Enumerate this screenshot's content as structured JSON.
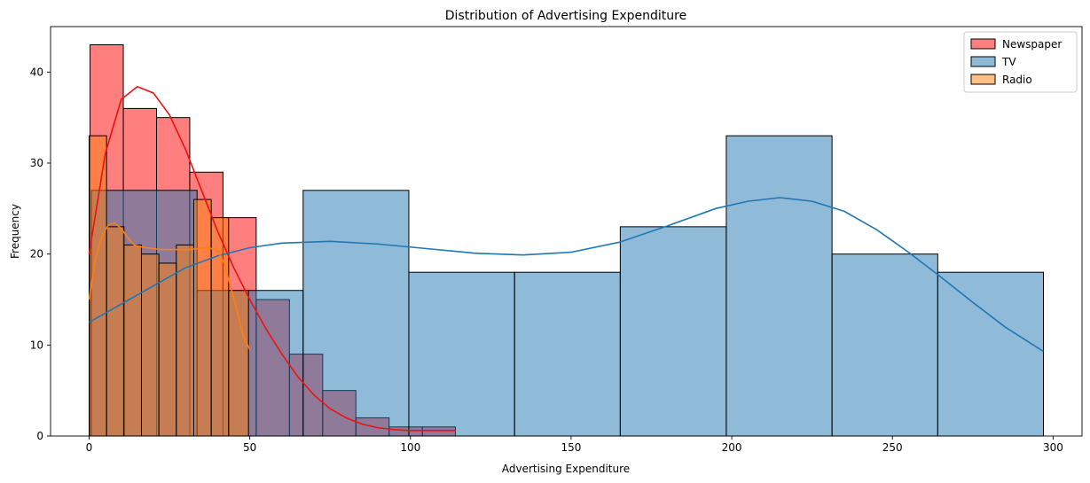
{
  "chart_data": {
    "type": "histogram",
    "title": "Distribution of Advertising Expenditure",
    "xlabel": "Advertising Expenditure",
    "ylabel": "Frequency",
    "xlim": [
      -12,
      309
    ],
    "ylim": [
      0,
      45
    ],
    "xticks": [
      0,
      50,
      100,
      150,
      200,
      250,
      300
    ],
    "yticks": [
      0,
      10,
      20,
      30,
      40
    ],
    "legend_position": "top-right",
    "grid": false,
    "series": [
      {
        "name": "Newspaper",
        "color": "#ff0000",
        "bar_fill": "#ff8080",
        "line_color": "#ee1111",
        "bin_edges": [
          0.3,
          10.64,
          20.98,
          31.32,
          41.66,
          52.0,
          62.34,
          72.68,
          83.02,
          93.36,
          103.7,
          114.0
        ],
        "counts": [
          43,
          36,
          35,
          29,
          24,
          15,
          9,
          5,
          2,
          1,
          1
        ],
        "kde": [
          [
            0,
            20
          ],
          [
            5,
            31
          ],
          [
            10,
            37
          ],
          [
            15,
            38.4
          ],
          [
            20,
            37.7
          ],
          [
            25,
            35.3
          ],
          [
            30,
            31.5
          ],
          [
            35,
            27
          ],
          [
            40,
            22.5
          ],
          [
            45,
            18.5
          ],
          [
            50,
            15
          ],
          [
            55,
            11.8
          ],
          [
            60,
            9
          ],
          [
            65,
            6.5
          ],
          [
            70,
            4.5
          ],
          [
            75,
            3
          ],
          [
            80,
            2
          ],
          [
            85,
            1.3
          ],
          [
            90,
            0.9
          ],
          [
            95,
            0.7
          ],
          [
            100,
            0.6
          ],
          [
            105,
            0.6
          ],
          [
            110,
            0.6
          ],
          [
            114,
            0.6
          ]
        ]
      },
      {
        "name": "TV",
        "color": "#1f77b4",
        "bar_fill": "#8db8db",
        "line_color": "#1f77b4",
        "bin_edges": [
          0.7,
          33.6,
          66.6,
          99.5,
          132.4,
          165.3,
          198.3,
          231.2,
          264.1,
          297.0
        ],
        "counts": [
          27,
          16,
          27,
          18,
          18,
          23,
          33,
          20,
          18
        ],
        "kde": [
          [
            0,
            12.5
          ],
          [
            10,
            14.5
          ],
          [
            20,
            16.5
          ],
          [
            30,
            18.5
          ],
          [
            40,
            19.8
          ],
          [
            50,
            20.7
          ],
          [
            60,
            21.2
          ],
          [
            75,
            21.4
          ],
          [
            90,
            21.1
          ],
          [
            105,
            20.6
          ],
          [
            120,
            20.1
          ],
          [
            135,
            19.9
          ],
          [
            150,
            20.2
          ],
          [
            165,
            21.3
          ],
          [
            180,
            23.1
          ],
          [
            195,
            25
          ],
          [
            205,
            25.8
          ],
          [
            215,
            26.2
          ],
          [
            225,
            25.8
          ],
          [
            235,
            24.7
          ],
          [
            245,
            22.7
          ],
          [
            255,
            20.2
          ],
          [
            265,
            17.5
          ],
          [
            275,
            14.7
          ],
          [
            285,
            12
          ],
          [
            297,
            9.3
          ]
        ]
      },
      {
        "name": "Radio",
        "color": "#ff7f0e",
        "bar_fill": "#ffbf86",
        "line_color": "#ff7f0e",
        "bin_edges": [
          0.0,
          5.43,
          10.86,
          16.29,
          21.71,
          27.14,
          32.57,
          38.0,
          43.43,
          49.6
        ],
        "counts": [
          33,
          23,
          21,
          20,
          19,
          21,
          26,
          24,
          16
        ],
        "kde": [
          [
            0,
            15
          ],
          [
            2,
            19.5
          ],
          [
            4,
            22
          ],
          [
            6,
            23.2
          ],
          [
            8,
            23.4
          ],
          [
            10,
            22.8
          ],
          [
            12,
            21.8
          ],
          [
            14,
            21
          ],
          [
            16,
            20.8
          ],
          [
            18,
            20.7
          ],
          [
            20,
            20.6
          ],
          [
            22,
            20.5
          ],
          [
            25,
            20.5
          ],
          [
            28,
            20.5
          ],
          [
            31,
            20.5
          ],
          [
            34,
            20.6
          ],
          [
            37,
            20.7
          ],
          [
            40,
            20.4
          ],
          [
            42,
            19
          ],
          [
            44,
            16.5
          ],
          [
            46,
            13.8
          ],
          [
            48,
            11
          ],
          [
            50,
            9.5
          ]
        ]
      }
    ]
  }
}
